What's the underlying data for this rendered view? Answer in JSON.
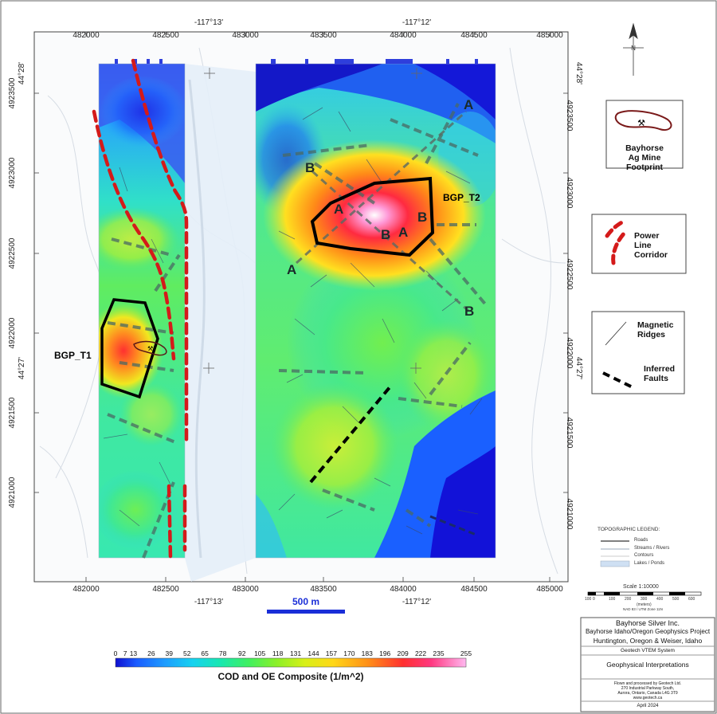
{
  "easting_ticks": [
    "482000",
    "482500",
    "483000",
    "483500",
    "484000",
    "484500",
    "485000"
  ],
  "northing_ticks": [
    "4923500",
    "4923000",
    "4922500",
    "4922000",
    "4921500",
    "4921000"
  ],
  "longitude_top": [
    "-117°13'",
    "-117°12'"
  ],
  "longitude_bottom": [
    "-117°13'",
    "-117°12'"
  ],
  "latitude_left": [
    "44°28'",
    "44°27'"
  ],
  "latitude_right": [
    "44°28'",
    "44°27'"
  ],
  "targets": {
    "t1": "BGP_T1",
    "t2": "BGP_T2"
  },
  "section_letters": {
    "a": "A",
    "b": "B"
  },
  "scalebar_label": "500 m",
  "north_arrow_label": "N",
  "legend": {
    "mine": "Bayhorse\nAg Mine\nFootprint",
    "power": "Power\nLine\nCorridor",
    "magnetic": "Magnetic\nRidges",
    "faults": "Inferred\nFaults"
  },
  "topo_legend": {
    "title": "TOPOGRAPHIC LEGEND:",
    "items": [
      "Roads",
      "Streams / Rivers",
      "Contours",
      "Lakes / Ponds"
    ]
  },
  "scale": {
    "title": "Scale 1:10000",
    "ticks": [
      "100",
      "0",
      "100",
      "200",
      "300",
      "400",
      "500",
      "600"
    ],
    "units": "(meters)",
    "datum": "NAD 83 / UTM Zone 11N"
  },
  "title_block": {
    "company": "Bayhorse Silver Inc.",
    "project": "Bayhorse Idaho/Oregon Geophysics Project",
    "location": "Huntington, Oregon & Weiser, Idaho",
    "system": "Geotech VTEM System",
    "map_title": "Geophysical Interpretations",
    "processed": "Flown and processed by Geotech Ltd.",
    "address1": "270 Industrial Parkway South,",
    "address2": "Aurora, Ontario, Canada L4G 3T9",
    "website": "www.geotech.ca",
    "date": "April 2024"
  },
  "colorbar": {
    "ticks": [
      "0",
      "7",
      "13",
      "26",
      "39",
      "52",
      "65",
      "78",
      "92",
      "105",
      "118",
      "131",
      "144",
      "157",
      "170",
      "183",
      "196",
      "209",
      "222",
      "235",
      "255"
    ],
    "title": "COD and OE Composite (1/m^2)",
    "colors": [
      "#1010d0",
      "#1a5cff",
      "#1e9cff",
      "#16d2f0",
      "#18e8b0",
      "#2ef070",
      "#5af040",
      "#8cf028",
      "#b8f020",
      "#e0f018",
      "#f8e818",
      "#ffc818",
      "#ffa018",
      "#ff7818",
      "#ff4a20",
      "#ff2038",
      "#ff3880",
      "#ff78c8",
      "#ffb8f0"
    ]
  }
}
